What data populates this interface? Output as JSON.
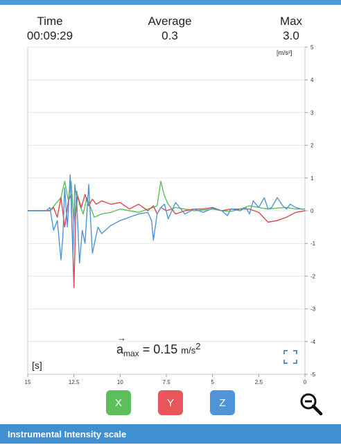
{
  "stats": {
    "time_label": "Time",
    "time_value": "00:09:29",
    "average_label": "Average",
    "average_value": "0.3",
    "max_label": "Max",
    "max_value": "3.0"
  },
  "units": {
    "acceleration": "[m/s²]",
    "time": "[s]"
  },
  "formula": {
    "symbol": "a",
    "subscript": "max",
    "equals": "= 0.15",
    "unit": "m/s",
    "exponent": "2",
    "arrow": "→"
  },
  "buttons": {
    "x_label": "X",
    "y_label": "Y",
    "z_label": "Z"
  },
  "footer": {
    "title": "Instrumental Intensity scale"
  },
  "colors": {
    "x": "#5cbf5c",
    "y": "#d9484e",
    "z": "#4f94d6",
    "header": "#4b9ad9"
  },
  "icons": [
    "expand-icon",
    "zoom-out-icon"
  ],
  "chart_data": {
    "type": "line",
    "xlabel": "[s]",
    "ylabel": "[m/s²]",
    "xlim": [
      15,
      0
    ],
    "ylim": [
      -5,
      5
    ],
    "x_ticks": [
      "15",
      "12.5",
      "10",
      "7.5",
      "5",
      "2.5",
      "0"
    ],
    "x_tick_values": [
      15,
      12.5,
      10,
      7.5,
      5,
      2.5,
      0
    ],
    "y_ticks": [
      "5",
      "4",
      "3",
      "2",
      "1",
      "0",
      "-1",
      "-2",
      "-3",
      "-4",
      "-5"
    ],
    "y_tick_values": [
      5,
      4,
      3,
      2,
      1,
      0,
      -1,
      -2,
      -3,
      -4,
      -5
    ],
    "grid": true,
    "series": [
      {
        "key": "x",
        "color": "#5cbf5c",
        "x": [
          15,
          13.8,
          13.5,
          13.2,
          13.0,
          12.8,
          12.65,
          12.5,
          12.35,
          12.2,
          12.0,
          11.8,
          11.6,
          11.4,
          11.0,
          10.5,
          10.0,
          9.5,
          9.0,
          8.5,
          8.2,
          8.0,
          7.8,
          7.6,
          7.4,
          7.2,
          7.0,
          6.5,
          6.0,
          5.5,
          5.0,
          4.5,
          4.0,
          3.5,
          3.0,
          2.5,
          2.0,
          1.5,
          1.0,
          0.5,
          0
        ],
        "y": [
          0,
          0,
          0.2,
          0.4,
          0.9,
          0.3,
          0.9,
          -0.4,
          0.6,
          0.2,
          -0.1,
          0.4,
          0.1,
          -0.2,
          -0.1,
          -0.05,
          0.05,
          0,
          -0.05,
          0.05,
          0.1,
          0.15,
          0.9,
          0.45,
          0.2,
          0.05,
          0.1,
          0.05,
          0,
          0.02,
          0.05,
          0,
          -0.02,
          0.05,
          0.15,
          0.1,
          0.05,
          0.08,
          0.1,
          0.05,
          0.05
        ]
      },
      {
        "key": "y",
        "color": "#d9484e",
        "x": [
          15,
          13.8,
          13.6,
          13.4,
          13.2,
          13.0,
          12.8,
          12.65,
          12.5,
          12.4,
          12.3,
          12.1,
          11.9,
          11.7,
          11.5,
          11.3,
          11.0,
          10.5,
          10.0,
          9.5,
          9.0,
          8.5,
          8.2,
          8.0,
          7.8,
          7.5,
          7.2,
          7.0,
          6.5,
          6.0,
          5.5,
          5.0,
          4.5,
          4.0,
          3.5,
          3.0,
          2.5,
          2.0,
          1.5,
          1.0,
          0.5,
          0
        ],
        "y": [
          0,
          0,
          0.1,
          -0.2,
          0.4,
          -0.5,
          0.3,
          0.5,
          -2.35,
          -0.1,
          0.45,
          0.1,
          0.5,
          0.15,
          0.35,
          0.2,
          0.3,
          0.2,
          0.25,
          0.05,
          0.2,
          0,
          0.15,
          -0.1,
          0.1,
          0,
          0.05,
          -0.1,
          0,
          0.05,
          0.05,
          0.1,
          0,
          0.05,
          0.05,
          0.05,
          -0.05,
          -0.35,
          -0.3,
          -0.2,
          -0.05,
          0
        ]
      },
      {
        "key": "z",
        "color": "#4f94d6",
        "x": [
          15,
          14.0,
          13.8,
          13.6,
          13.4,
          13.2,
          13.1,
          13.0,
          12.85,
          12.7,
          12.55,
          12.45,
          12.35,
          12.2,
          12.05,
          11.9,
          11.7,
          11.5,
          11.2,
          11.0,
          10.5,
          10.0,
          9.5,
          9.0,
          8.5,
          8.3,
          8.2,
          8.0,
          7.8,
          7.6,
          7.4,
          7.0,
          6.5,
          6.0,
          5.5,
          5.0,
          4.5,
          4.2,
          4.0,
          3.5,
          3.2,
          3.0,
          2.8,
          2.5,
          2.2,
          2.0,
          1.8,
          1.5,
          1.2,
          1.0,
          0.8,
          0.5,
          0.2,
          0
        ],
        "y": [
          0,
          0,
          0.1,
          -0.6,
          -0.3,
          -1.5,
          -0.8,
          0.7,
          -0.5,
          1.1,
          -1.4,
          0.8,
          0.3,
          -1.6,
          -0.6,
          -1.0,
          0.8,
          -1.3,
          -0.5,
          -0.7,
          -0.45,
          -0.3,
          -0.2,
          -0.1,
          -0.05,
          -0.3,
          -0.9,
          -0.1,
          0.1,
          0.2,
          -0.25,
          0.25,
          -0.1,
          0.05,
          -0.05,
          0.08,
          0.0,
          -0.15,
          0.05,
          0.0,
          0.1,
          -0.1,
          0.3,
          0.1,
          0.4,
          0.05,
          0.1,
          0.4,
          0.15,
          0.05,
          0.2,
          0.1,
          0.05,
          0.05
        ]
      }
    ]
  }
}
